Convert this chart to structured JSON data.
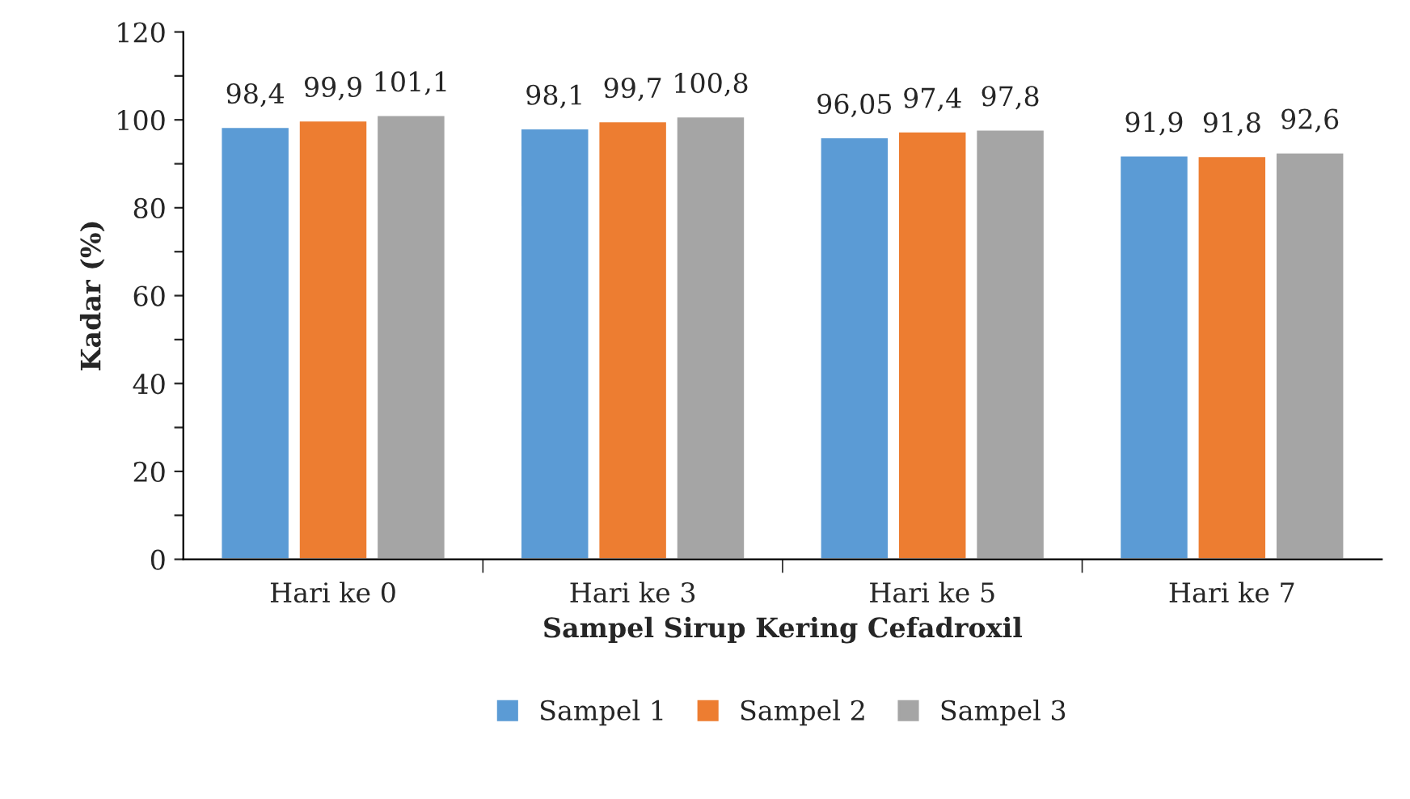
{
  "chart_data": {
    "type": "bar",
    "xlabel": "Sampel Sirup Kering Cefadroxil",
    "ylabel": "Kadar (%)",
    "categories": [
      "Hari ke 0",
      "Hari ke 3",
      "Hari ke 5",
      "Hari ke 7"
    ],
    "series": [
      {
        "name": "Sampel 1",
        "color": "#5b9bd5",
        "values": [
          98.4,
          98.1,
          96.05,
          91.9
        ],
        "value_labels": [
          "98,4",
          "98,1",
          "96,05",
          "91,9"
        ]
      },
      {
        "name": "Sampel 2",
        "color": "#ed7d31",
        "values": [
          99.9,
          99.7,
          97.4,
          91.8
        ],
        "value_labels": [
          "99,9",
          "99,7",
          "97,4",
          "91,8"
        ]
      },
      {
        "name": "Sampel 3",
        "color": "#a5a5a5",
        "values": [
          101.1,
          100.8,
          97.8,
          92.6
        ],
        "value_labels": [
          "101,1",
          "100,8",
          "97,8",
          "92,6"
        ]
      }
    ],
    "ylim": [
      0,
      120
    ],
    "yticks": [
      0,
      {
        "value": 10,
        "label": null
      },
      20,
      {
        "value": 30,
        "label": null
      },
      40,
      {
        "value": 50,
        "label": null
      },
      60,
      {
        "value": 70,
        "label": null
      },
      80,
      {
        "value": 90,
        "label": null
      },
      100,
      {
        "value": 110,
        "label": null
      },
      120
    ],
    "grid": false,
    "legend": "bottom"
  }
}
